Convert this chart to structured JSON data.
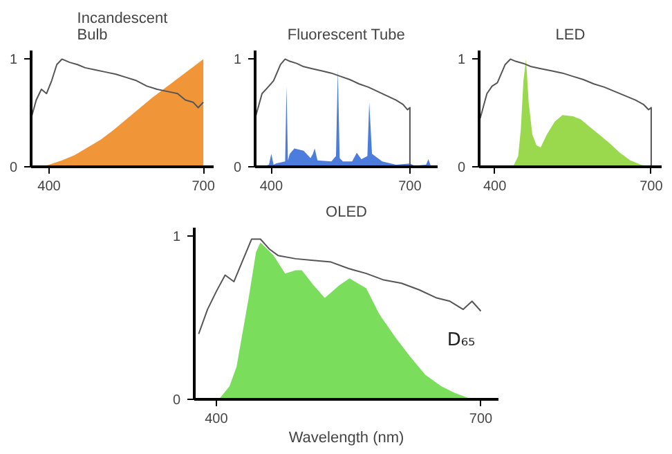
{
  "chart_data": [
    {
      "type": "area",
      "title": "Incandescent Bulb",
      "xlim": [
        365,
        720
      ],
      "ylim": [
        0,
        1.08
      ],
      "xticks": [
        400,
        700
      ],
      "yticks": [
        0,
        1
      ],
      "grid": false,
      "series": [
        {
          "type": "line",
          "color": "#555555",
          "x": [
            365,
            375,
            385,
            395,
            405,
            415,
            425,
            440,
            455,
            470,
            490,
            510,
            530,
            550,
            570,
            590,
            610,
            630,
            650,
            665,
            680,
            690,
            700
          ],
          "values": [
            0.45,
            0.62,
            0.72,
            0.68,
            0.8,
            0.95,
            1.0,
            0.97,
            0.95,
            0.92,
            0.9,
            0.88,
            0.86,
            0.83,
            0.8,
            0.75,
            0.72,
            0.7,
            0.68,
            0.62,
            0.6,
            0.55,
            0.6
          ]
        },
        {
          "color": "#f08a24",
          "x": [
            385,
            400,
            425,
            450,
            475,
            500,
            525,
            550,
            575,
            600,
            625,
            650,
            675,
            700
          ],
          "values": [
            0,
            0.02,
            0.06,
            0.11,
            0.18,
            0.25,
            0.34,
            0.44,
            0.54,
            0.64,
            0.73,
            0.82,
            0.91,
            1.0
          ]
        }
      ]
    },
    {
      "type": "area",
      "title": "Fluorescent Tube",
      "xlim": [
        365,
        760
      ],
      "ylim": [
        0,
        1.08
      ],
      "xticks": [
        400,
        700
      ],
      "yticks": [
        0,
        1
      ],
      "grid": false,
      "series": [
        {
          "type": "line",
          "color": "#555555",
          "x": [
            365,
            380,
            395,
            405,
            420,
            430,
            440,
            455,
            470,
            490,
            510,
            530,
            550,
            570,
            590,
            610,
            630,
            650,
            670,
            685,
            695,
            700,
            700
          ],
          "values": [
            0.45,
            0.68,
            0.75,
            0.8,
            0.95,
            1.0,
            0.98,
            0.96,
            0.93,
            0.91,
            0.89,
            0.87,
            0.84,
            0.81,
            0.77,
            0.74,
            0.7,
            0.66,
            0.62,
            0.58,
            0.53,
            0.55,
            0
          ]
        },
        {
          "color": "#3a6fd8",
          "x": [
            380,
            395,
            400,
            405,
            410,
            430,
            433,
            436,
            440,
            450,
            470,
            485,
            490,
            494,
            500,
            530,
            540,
            544,
            548,
            555,
            575,
            585,
            595,
            608,
            612,
            618,
            640,
            670,
            700,
            710,
            735,
            740,
            745,
            760
          ],
          "values": [
            0,
            0.02,
            0.12,
            0.02,
            0.03,
            0.05,
            0.75,
            0.06,
            0.12,
            0.17,
            0.15,
            0.08,
            0.12,
            0.17,
            0.06,
            0.05,
            0.1,
            0.9,
            0.08,
            0.05,
            0.05,
            0.13,
            0.07,
            0.1,
            0.6,
            0.12,
            0.05,
            0.02,
            0.03,
            0.01,
            0.02,
            0.07,
            0.01,
            0
          ]
        }
      ]
    },
    {
      "type": "area",
      "title": "LED",
      "xlim": [
        370,
        720
      ],
      "ylim": [
        0,
        1.08
      ],
      "xticks": [
        400,
        700
      ],
      "yticks": [
        0,
        1
      ],
      "grid": false,
      "series": [
        {
          "type": "line",
          "color": "#555555",
          "x": [
            372,
            385,
            395,
            405,
            420,
            430,
            440,
            455,
            470,
            490,
            510,
            530,
            550,
            570,
            590,
            610,
            630,
            650,
            670,
            685,
            695,
            700,
            700
          ],
          "values": [
            0.45,
            0.68,
            0.75,
            0.78,
            0.95,
            1.0,
            0.98,
            0.96,
            0.93,
            0.91,
            0.89,
            0.87,
            0.84,
            0.81,
            0.77,
            0.74,
            0.7,
            0.66,
            0.62,
            0.58,
            0.53,
            0.55,
            0
          ]
        },
        {
          "color": "#8fd43a",
          "x": [
            435,
            445,
            450,
            455,
            460,
            465,
            472,
            480,
            488,
            500,
            515,
            530,
            550,
            565,
            580,
            600,
            620,
            640,
            660,
            680,
            700
          ],
          "values": [
            0,
            0.1,
            0.35,
            0.8,
            1.0,
            0.6,
            0.3,
            0.2,
            0.18,
            0.3,
            0.42,
            0.48,
            0.47,
            0.44,
            0.38,
            0.3,
            0.22,
            0.13,
            0.06,
            0.02,
            0
          ]
        }
      ]
    },
    {
      "type": "area",
      "title": "OLED",
      "xlabel": "Wavelength (nm)",
      "xlim": [
        375,
        720
      ],
      "ylim": [
        0,
        1.05
      ],
      "xticks": [
        400,
        700
      ],
      "yticks": [
        0,
        1
      ],
      "grid": false,
      "legend": false,
      "series": [
        {
          "type": "line",
          "name": "D₆₅",
          "color": "#555555",
          "x": [
            380,
            390,
            400,
            410,
            420,
            430,
            440,
            450,
            460,
            470,
            490,
            510,
            530,
            550,
            570,
            590,
            610,
            630,
            650,
            665,
            680,
            690,
            700
          ],
          "values": [
            0.4,
            0.55,
            0.66,
            0.76,
            0.72,
            0.85,
            0.98,
            0.98,
            0.92,
            0.88,
            0.86,
            0.85,
            0.84,
            0.8,
            0.77,
            0.73,
            0.71,
            0.67,
            0.62,
            0.6,
            0.55,
            0.6,
            0.54
          ]
        },
        {
          "color": "#6cd94a",
          "x": [
            403,
            415,
            423,
            437,
            445,
            450,
            465,
            478,
            490,
            497,
            510,
            523,
            540,
            551,
            570,
            585,
            603,
            620,
            637,
            655,
            670,
            685,
            697
          ],
          "values": [
            0,
            0.08,
            0.2,
            0.63,
            0.9,
            0.96,
            0.88,
            0.77,
            0.79,
            0.79,
            0.7,
            0.62,
            0.7,
            0.74,
            0.68,
            0.52,
            0.38,
            0.26,
            0.15,
            0.08,
            0.04,
            0.01,
            0
          ]
        }
      ]
    }
  ]
}
